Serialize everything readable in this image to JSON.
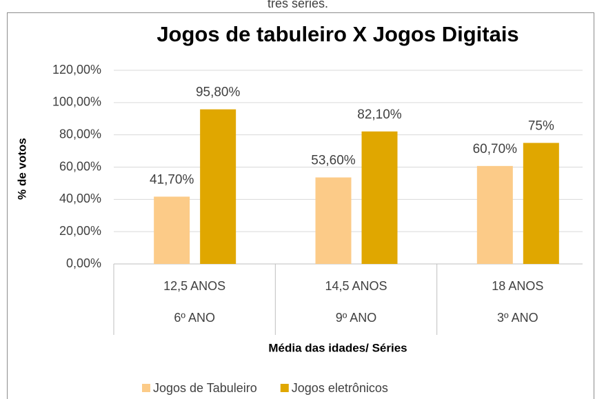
{
  "page_text": "três séries.",
  "chart_data": {
    "type": "bar",
    "title": "Jogos de tabuleiro X Jogos Digitais",
    "ylabel": "% de votos",
    "xlabel": "Média das idades/ Séries",
    "categories": [
      [
        "12,5 ANOS",
        "6º ANO"
      ],
      [
        "14,5 ANOS",
        "9º ANO"
      ],
      [
        "18 ANOS",
        "3º ANO"
      ]
    ],
    "series": [
      {
        "name": "Jogos de Tabuleiro",
        "color": "#fccb88",
        "values": [
          41.7,
          53.6,
          60.7
        ],
        "value_labels": [
          "41,70%",
          "53,60%",
          "60,70%"
        ]
      },
      {
        "name": "Jogos eletrônicos",
        "color": "#e0a700",
        "values": [
          95.8,
          82.1,
          75
        ],
        "value_labels": [
          "95,80%",
          "82,10%",
          "75%"
        ]
      }
    ],
    "ylim": [
      0,
      120
    ],
    "yticks": [
      {
        "value": 0,
        "label": "0,00%"
      },
      {
        "value": 20,
        "label": "20,00%"
      },
      {
        "value": 40,
        "label": "40,00%"
      },
      {
        "value": 60,
        "label": "60,00%"
      },
      {
        "value": 80,
        "label": "80,00%"
      },
      {
        "value": 100,
        "label": "100,00%"
      },
      {
        "value": 120,
        "label": "120,00%"
      }
    ],
    "grid": true,
    "legend": "bottom"
  }
}
